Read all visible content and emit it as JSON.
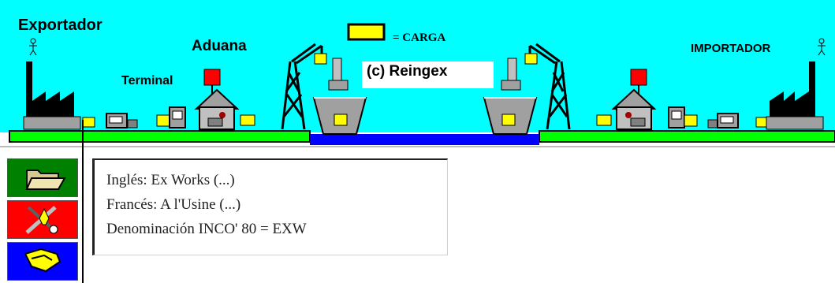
{
  "scene": {
    "exporter_label": "Exportador",
    "customs_label": "Aduana",
    "terminal_label": "Terminal",
    "importer_label": "IMPORTADOR",
    "cargo_legend": "= CARGA",
    "credit": "(c) Reingex",
    "colors": {
      "sky": "#00ffff",
      "land": "#00ff00",
      "water": "#0000ff",
      "cargo": "#ffff00",
      "flag": "#ff0000"
    }
  },
  "sidebar": {
    "buttons": [
      {
        "icon": "folder-icon",
        "bg": "#008000"
      },
      {
        "icon": "tools-icon",
        "bg": "#ff0000"
      },
      {
        "icon": "handshake-icon",
        "bg": "#0000ff"
      }
    ]
  },
  "info": {
    "lines": [
      "Inglés: Ex Works (...)",
      "Francés: A l'Usine (...)",
      "Denominación INCO' 80 = EXW"
    ]
  }
}
